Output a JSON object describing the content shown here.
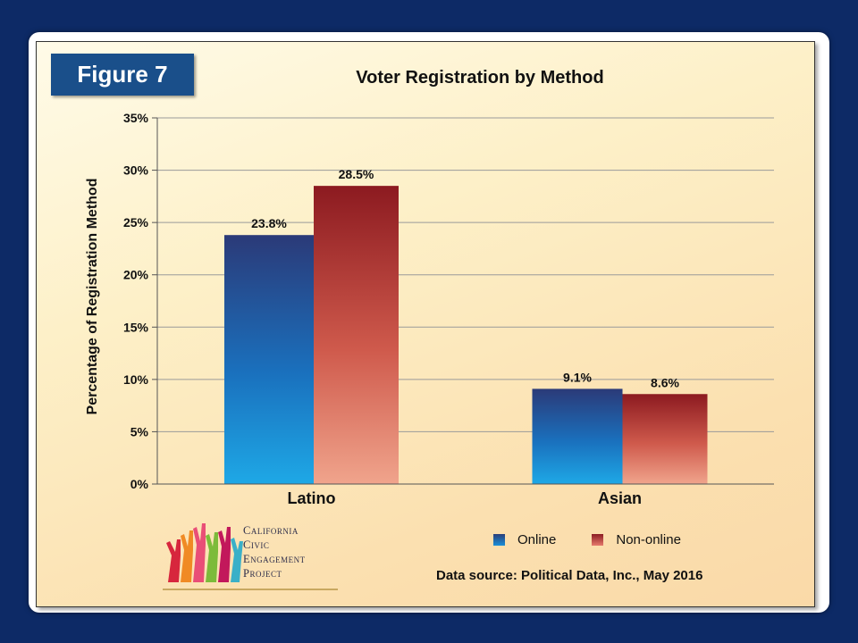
{
  "figure_label": "Figure 7",
  "chart_data": {
    "type": "bar",
    "title": "Voter Registration by Method",
    "xlabel": "",
    "ylabel": "Percentage of Registration Method",
    "categories": [
      "Latino",
      "Asian"
    ],
    "series": [
      {
        "name": "Online",
        "values": [
          23.8,
          9.1
        ],
        "labels": [
          "23.8%",
          "9.1%"
        ]
      },
      {
        "name": "Non-online",
        "values": [
          28.5,
          8.6
        ],
        "labels": [
          "28.5%",
          "8.6%"
        ]
      }
    ],
    "ylim": [
      0,
      35
    ],
    "yticks": [
      0,
      5,
      10,
      15,
      20,
      25,
      30,
      35
    ],
    "ytick_labels": [
      "0%",
      "5%",
      "10%",
      "15%",
      "20%",
      "25%",
      "30%",
      "35%"
    ],
    "grid": true,
    "legend_position": "bottom-right",
    "colors": {
      "online_top": "#2b3a78",
      "online_bottom": "#1ea8e6",
      "nononline_top": "#8c1a20",
      "nononline_bottom": "#f0a48c"
    }
  },
  "legend": {
    "online": "Online",
    "nononline": "Non-online"
  },
  "source": "Data source: Political Data, Inc., May 2016",
  "logo": {
    "line1": "California",
    "line2": "Civic",
    "line3": "Engagement",
    "line4": "Project"
  }
}
